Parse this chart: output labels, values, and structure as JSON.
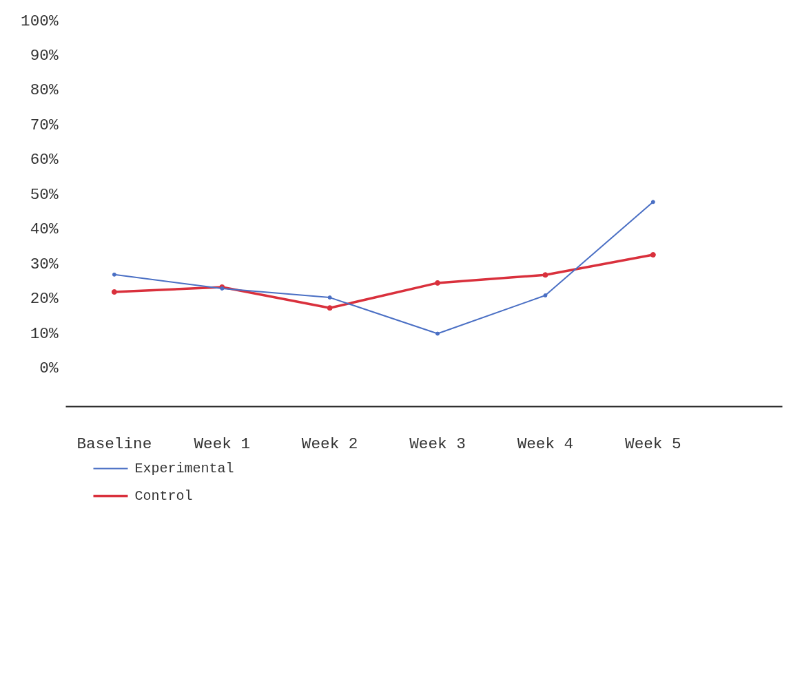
{
  "chart_data": {
    "type": "line",
    "categories": [
      "Baseline",
      "Week 1",
      "Week 2",
      "Week 3",
      "Week 4",
      "Week 5"
    ],
    "series": [
      {
        "name": "Experimental",
        "color": "#4a6fc4",
        "values": [
          27,
          23,
          20.4,
          10,
          21,
          47.9
        ]
      },
      {
        "name": "Control",
        "color": "#d9303c",
        "values": [
          22,
          23.4,
          17.4,
          24.6,
          26.9,
          32.7
        ]
      }
    ],
    "ylim": [
      -11,
      100
    ],
    "yticks": [
      {
        "value": 0,
        "label": "0%"
      },
      {
        "value": 10,
        "label": "10%"
      },
      {
        "value": 20,
        "label": "20%"
      },
      {
        "value": 30,
        "label": "30%"
      },
      {
        "value": 40,
        "label": "40%"
      },
      {
        "value": 50,
        "label": "50%"
      },
      {
        "value": 60,
        "label": "60%"
      },
      {
        "value": 70,
        "label": "70%"
      },
      {
        "value": 80,
        "label": "80%"
      },
      {
        "value": 90,
        "label": "90%"
      },
      {
        "value": 100,
        "label": "100%"
      }
    ],
    "grid": false,
    "legend": "bottom left",
    "marker": "circle",
    "line_style": "solid"
  }
}
